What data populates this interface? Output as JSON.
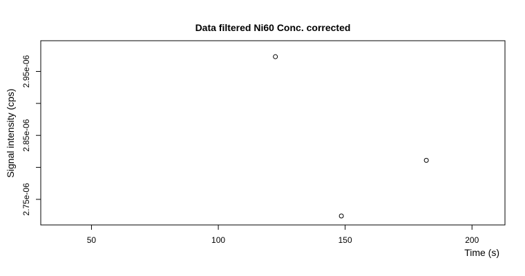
{
  "chart_data": {
    "type": "scatter",
    "title": "Data filtered Ni60 Conc. corrected",
    "xlabel": "Time (s)",
    "ylabel": "Signal intensity (cps)",
    "xlim": [
      30,
      213
    ],
    "ylim": [
      2.71e-06,
      2.998e-06
    ],
    "x_ticks": [
      50,
      100,
      150,
      200
    ],
    "x_tick_labels": [
      "50",
      "100",
      "150",
      "200"
    ],
    "y_ticks": [
      2.75e-06,
      2.8e-06,
      2.85e-06,
      2.9e-06,
      2.95e-06
    ],
    "y_tick_labels": [
      "2.75e-06",
      "",
      "2.85e-06",
      "",
      "2.95e-06"
    ],
    "grid": false,
    "legend": "none",
    "marker": "open-circle",
    "series": [
      {
        "x": [
          122.5,
          148.5,
          182.0
        ],
        "y": [
          2.973e-06,
          2.724e-06,
          2.811e-06
        ]
      }
    ]
  }
}
